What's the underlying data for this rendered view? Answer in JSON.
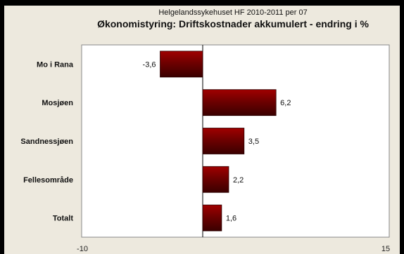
{
  "chart_data": {
    "type": "bar",
    "orientation": "horizontal",
    "supertitle": "Helgelandssykehuset HF 2010-2011 per 07",
    "title": "Økonomistyring: Driftskostnader akkumulert - endring i %",
    "categories": [
      "Mo i Rana",
      "Mosjøen",
      "Sandnessjøen",
      "Fellesområde",
      "Totalt"
    ],
    "values": [
      -3.6,
      6.2,
      3.5,
      2.2,
      1.6
    ],
    "value_labels": [
      "-3,6",
      "6,2",
      "3,5",
      "2,2",
      "1,6"
    ],
    "xlim": [
      -10,
      15
    ],
    "tick_labels": [
      "-10",
      "15"
    ],
    "grid": false,
    "legend": "none",
    "bar_color": "#7a0000",
    "plot_background": "#ffffff",
    "page_background": "#ede9de"
  }
}
